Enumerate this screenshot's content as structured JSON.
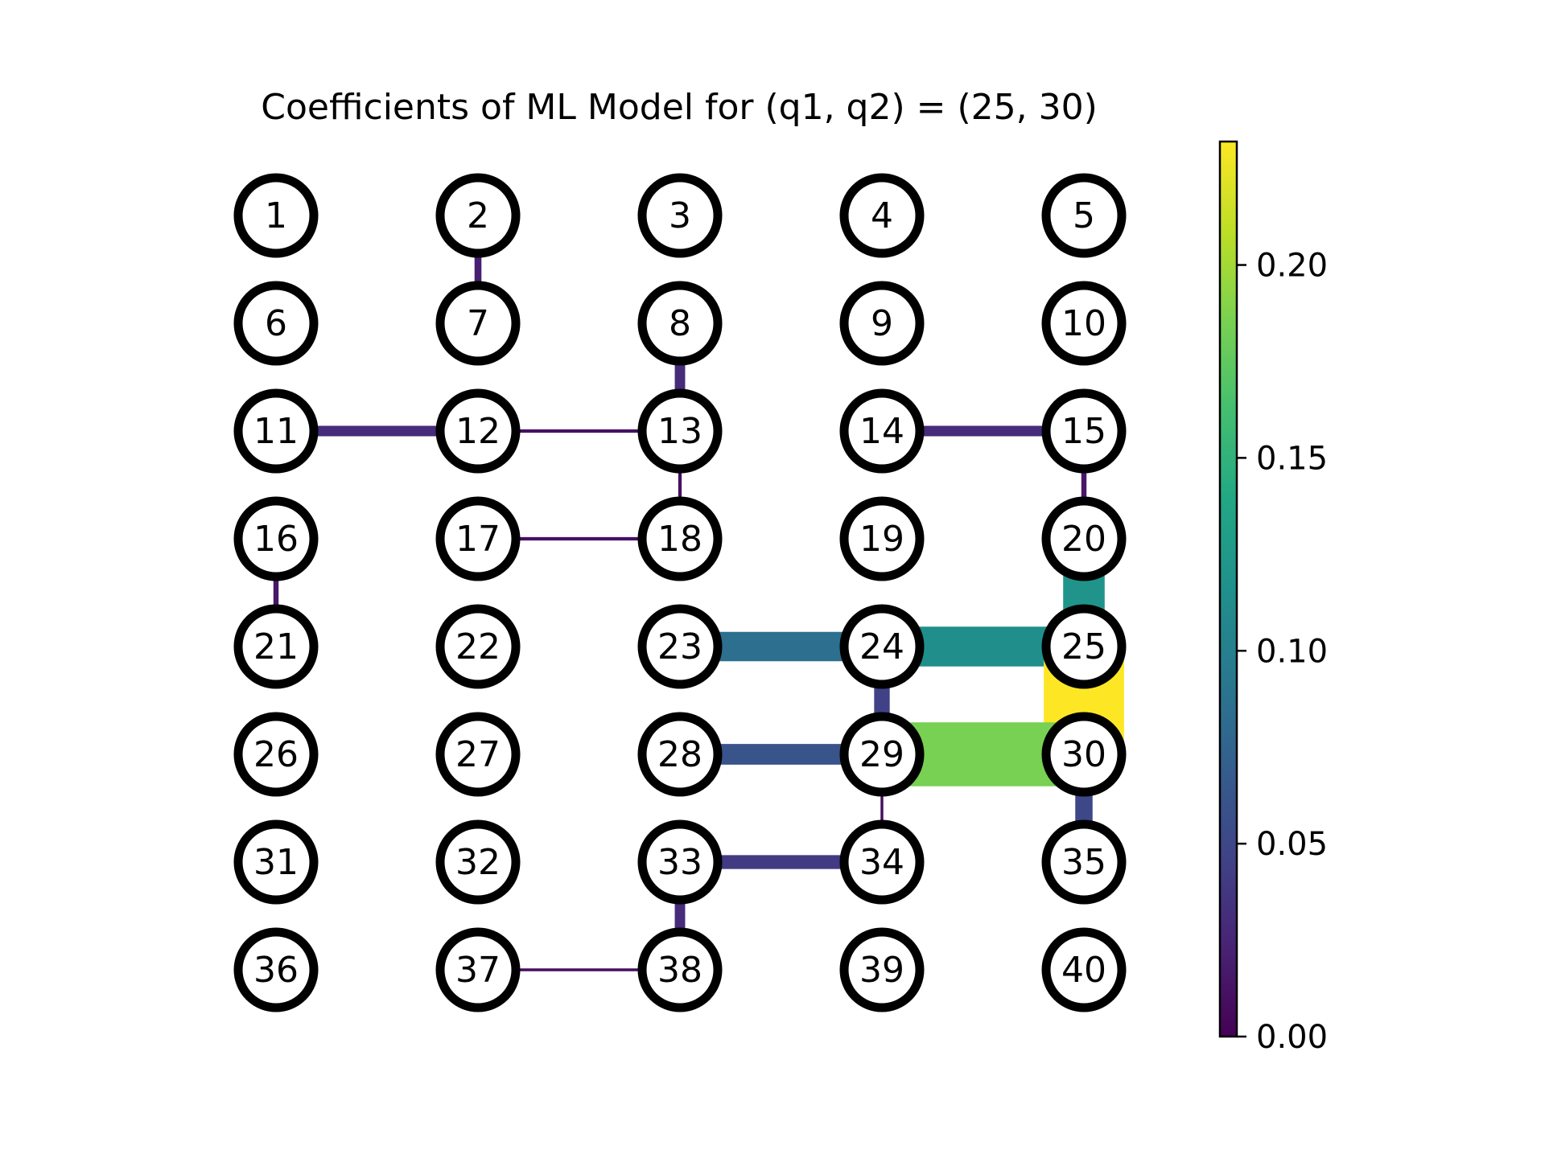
{
  "title": "Coefficients of ML Model for (q1, q2) = (25, 30)",
  "grid": {
    "columns": 5,
    "rows": 8
  },
  "nodes": [
    "1",
    "2",
    "3",
    "4",
    "5",
    "6",
    "7",
    "8",
    "9",
    "10",
    "11",
    "12",
    "13",
    "14",
    "15",
    "16",
    "17",
    "18",
    "19",
    "20",
    "21",
    "22",
    "23",
    "24",
    "25",
    "26",
    "27",
    "28",
    "29",
    "30",
    "31",
    "32",
    "33",
    "34",
    "35",
    "36",
    "37",
    "38",
    "39",
    "40"
  ],
  "colorbar": {
    "colormap": "viridis",
    "min": 0.0,
    "max": 0.232,
    "ticks": [
      {
        "value": 0.0,
        "label": "0.00"
      },
      {
        "value": 0.05,
        "label": "0.05"
      },
      {
        "value": 0.1,
        "label": "0.10"
      },
      {
        "value": 0.15,
        "label": "0.15"
      },
      {
        "value": 0.2,
        "label": "0.20"
      }
    ]
  },
  "chart_data": {
    "type": "network",
    "edges": [
      {
        "source": 2,
        "target": 7,
        "value": 0.02
      },
      {
        "source": 8,
        "target": 13,
        "value": 0.03
      },
      {
        "source": 11,
        "target": 12,
        "value": 0.03
      },
      {
        "source": 12,
        "target": 13,
        "value": 0.01
      },
      {
        "source": 13,
        "target": 18,
        "value": 0.01
      },
      {
        "source": 14,
        "target": 15,
        "value": 0.03
      },
      {
        "source": 15,
        "target": 20,
        "value": 0.015
      },
      {
        "source": 16,
        "target": 21,
        "value": 0.015
      },
      {
        "source": 17,
        "target": 18,
        "value": 0.01
      },
      {
        "source": 20,
        "target": 25,
        "value": 0.12
      },
      {
        "source": 23,
        "target": 24,
        "value": 0.085
      },
      {
        "source": 24,
        "target": 25,
        "value": 0.115
      },
      {
        "source": 24,
        "target": 29,
        "value": 0.045
      },
      {
        "source": 25,
        "target": 30,
        "value": 0.232
      },
      {
        "source": 28,
        "target": 29,
        "value": 0.06
      },
      {
        "source": 29,
        "target": 30,
        "value": 0.185
      },
      {
        "source": 29,
        "target": 34,
        "value": 0.008
      },
      {
        "source": 30,
        "target": 35,
        "value": 0.05
      },
      {
        "source": 33,
        "target": 34,
        "value": 0.04
      },
      {
        "source": 33,
        "target": 38,
        "value": 0.03
      },
      {
        "source": 37,
        "target": 38,
        "value": 0.008
      }
    ]
  }
}
